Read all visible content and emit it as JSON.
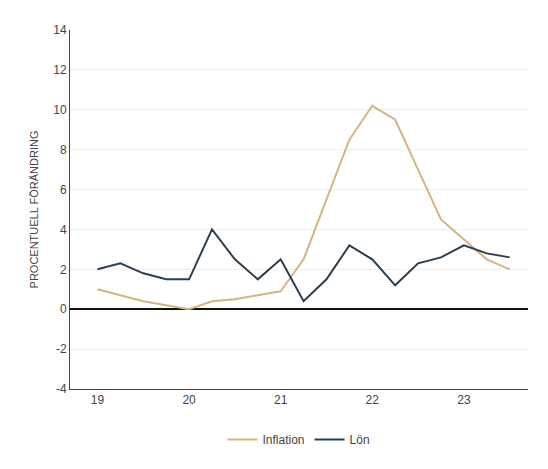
{
  "chart_data": {
    "type": "line",
    "x": [
      19.0,
      19.25,
      19.5,
      19.75,
      20.0,
      20.25,
      20.5,
      20.75,
      21.0,
      21.25,
      21.5,
      21.75,
      22.0,
      22.25,
      22.5,
      22.75,
      23.0,
      23.25,
      23.5
    ],
    "series": [
      {
        "name": "Inflation",
        "color": "#D4B483",
        "values": [
          1.0,
          0.7,
          0.4,
          0.2,
          0.0,
          0.4,
          0.5,
          0.7,
          0.9,
          2.5,
          5.5,
          8.5,
          10.2,
          9.5,
          7.0,
          4.5,
          3.5,
          2.5,
          2.0
        ]
      },
      {
        "name": "Lön",
        "color": "#2D3F4E",
        "values": [
          2.0,
          2.3,
          1.8,
          1.5,
          1.5,
          4.0,
          2.5,
          1.5,
          2.5,
          0.4,
          1.5,
          3.2,
          2.5,
          1.2,
          2.3,
          2.6,
          3.2,
          2.8,
          2.6
        ]
      }
    ],
    "ylabel": "PROCENTUELL FÖRÄNDRING",
    "xlim": [
      18.7,
      23.7
    ],
    "xticks": [
      19,
      20,
      21,
      22,
      23
    ],
    "ylim": [
      -4,
      14
    ],
    "yticks": [
      -4,
      -2,
      0,
      2,
      4,
      6,
      8,
      10,
      12,
      14
    ],
    "grid": true,
    "legend": "bottom"
  }
}
